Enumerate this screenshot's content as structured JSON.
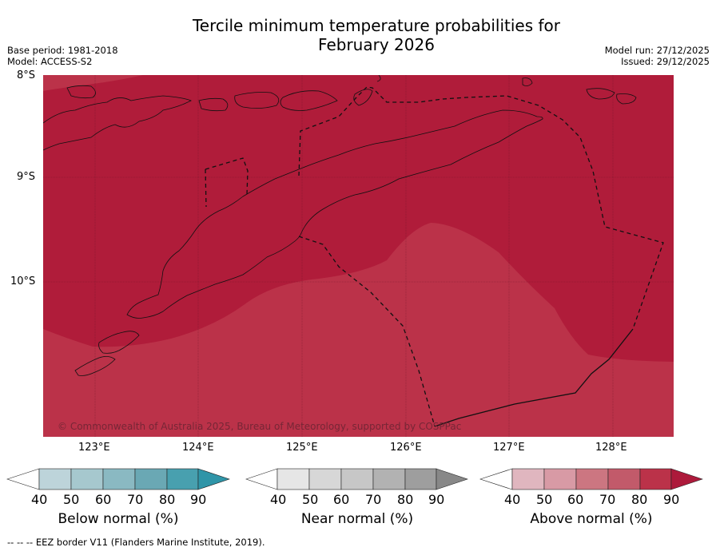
{
  "title": "Tercile minimum temperature probabilities for",
  "subtitle": "February 2026",
  "meta_left": {
    "base_period": "Base period: 1981-2018",
    "model": "Model: ACCESS-S2"
  },
  "meta_right": {
    "model_run": "Model run: 27/12/2025",
    "issued": "Issued: 29/12/2025"
  },
  "map": {
    "lat_labels": [
      "8°S",
      "9°S",
      "10°S"
    ],
    "lon_labels": [
      "123°E",
      "124°E",
      "125°E",
      "126°E",
      "127°E",
      "128°E"
    ],
    "copyright": "© Commonwealth of Australia 2025, Bureau of Meteorology, supported by COSPPac",
    "colors": {
      "above_90": "#b01c3a",
      "above_80": "#bb3249"
    }
  },
  "colorbars": [
    {
      "label": "Below normal (%)",
      "ticks": [
        "40",
        "50",
        "60",
        "70",
        "80",
        "90"
      ],
      "colors": [
        "#ffffff",
        "#bdd4da",
        "#a6c8ce",
        "#8ab9c2",
        "#6aa8b4",
        "#48a0af",
        "#2f95a8"
      ]
    },
    {
      "label": "Near normal (%)",
      "ticks": [
        "40",
        "50",
        "60",
        "70",
        "80",
        "90"
      ],
      "colors": [
        "#ffffff",
        "#e6e6e6",
        "#d7d7d7",
        "#c7c7c7",
        "#b2b2b2",
        "#9e9e9e",
        "#888888"
      ]
    },
    {
      "label": "Above normal (%)",
      "ticks": [
        "40",
        "50",
        "60",
        "70",
        "80",
        "90"
      ],
      "colors": [
        "#ffffff",
        "#e0b6bf",
        "#d89aa5",
        "#cc7681",
        "#c25a6a",
        "#bb3249",
        "#ad1a3b"
      ]
    }
  ],
  "footnote": "--  --  -- EEZ border V11 (Flanders Marine Institute, 2019)."
}
